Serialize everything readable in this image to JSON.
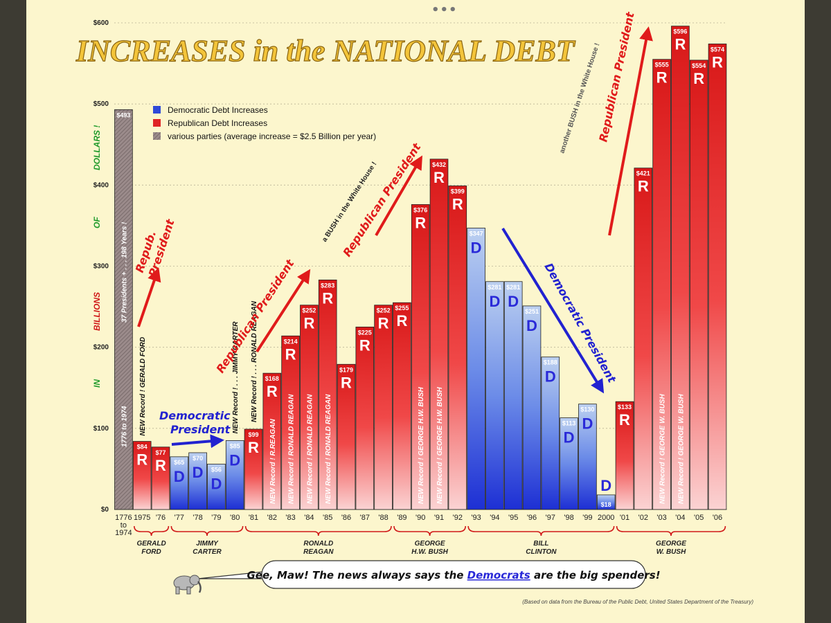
{
  "chart_data": {
    "type": "bar",
    "title": "INCREASES in the NATIONAL DEBT",
    "ylabel_words": [
      "IN",
      "BILLIONS",
      "OF",
      "DOLLARS !"
    ],
    "ylim": [
      0,
      600
    ],
    "yticks": [
      0,
      100,
      200,
      300,
      400,
      500,
      600
    ],
    "ytick_labels": [
      "$0",
      "$100",
      "$200",
      "$300",
      "$400",
      "$500",
      "$600"
    ],
    "categories": [
      "1776\nto\n1974",
      "1975",
      "'76",
      "'77",
      "'78",
      "'79",
      "'80",
      "'81",
      "'82",
      "'83",
      "'84",
      "'85",
      "'86",
      "'87",
      "'88",
      "'89",
      "'90",
      "'91",
      "'92",
      "'93",
      "'94",
      "'95",
      "'96",
      "'97",
      "'98",
      "'99",
      "2000",
      "'01",
      "'02",
      "'03",
      "'04",
      "'05",
      "'06"
    ],
    "values": [
      493,
      84,
      77,
      65,
      70,
      56,
      85,
      99,
      168,
      214,
      252,
      283,
      179,
      225,
      252,
      255,
      376,
      432,
      399,
      347,
      281,
      281,
      251,
      188,
      113,
      130,
      18,
      133,
      421,
      555,
      596,
      554,
      574
    ],
    "value_labels": [
      "$493",
      "$84",
      "$77",
      "$65",
      "$70",
      "$56",
      "$85",
      "$99",
      "$168",
      "$214",
      "$252",
      "$283",
      "$179",
      "$225",
      "$252",
      "$255",
      "$376",
      "$432",
      "$399",
      "$347",
      "$281",
      "$281",
      "$251",
      "$188",
      "$113",
      "$130",
      "$18",
      "$133",
      "$421",
      "$555",
      "$596",
      "$554",
      "$574"
    ],
    "party": [
      "V",
      "R",
      "R",
      "D",
      "D",
      "D",
      "D",
      "R",
      "R",
      "R",
      "R",
      "R",
      "R",
      "R",
      "R",
      "R",
      "R",
      "R",
      "R",
      "D",
      "D",
      "D",
      "D",
      "D",
      "D",
      "D",
      "D",
      "R",
      "R",
      "R",
      "R",
      "R",
      "R"
    ],
    "record_labels": {
      "1": "NEW Record ! GERALD FORD",
      "8": "NEW Record ! R.REAGAN",
      "9": "NEW Record ! RONALD REAGAN",
      "10": "NEW Record ! RONALD REAGAN",
      "11": "NEW Record ! RONALD REAGAN",
      "16": "NEW Record ! GEORGE H.W. BUSH",
      "17": "NEW Record ! GEORGE H.W. BUSH",
      "29": "NEW Record ! GEORGE W. BUSH",
      "30": "NEW Record ! GEORGE W. BUSH"
    },
    "first_bar_note": "1776 to 1974",
    "first_bar_note2": "37 Presidents + . . . 198 Years !",
    "carter_reagan_note1": "NEW Record ! . . . JIMMY CARTER",
    "carter_reagan_note2": "NEW Record ! . . . RONALD REAGAN",
    "legend": [
      {
        "label": "Democratic Debt Increases",
        "color": "#2f49d8"
      },
      {
        "label": "Republican Debt Increases",
        "color": "#e02424"
      },
      {
        "label": "various parties (average increase = $2.5 Billion per year)",
        "color": "#8f7d7d"
      }
    ],
    "presidents": [
      {
        "name1": "GERALD",
        "name2": "FORD",
        "from": 1,
        "to": 2
      },
      {
        "name1": "JIMMY",
        "name2": "CARTER",
        "from": 3,
        "to": 6
      },
      {
        "name1": "RONALD",
        "name2": "REAGAN",
        "from": 7,
        "to": 14
      },
      {
        "name1": "GEORGE",
        "name2": "H.W. BUSH",
        "from": 15,
        "to": 18
      },
      {
        "name1": "BILL",
        "name2": "CLINTON",
        "from": 19,
        "to": 26
      },
      {
        "name1": "GEORGE",
        "name2": "W. BUSH",
        "from": 27,
        "to": 32
      }
    ],
    "colors": {
      "democrat": "#2f49d8",
      "republican": "#e02424",
      "various": "#8f7d7d",
      "background": "#fcf6cd"
    }
  },
  "annotations": {
    "repub_president_1": "Repub. President",
    "democratic_president_1": "Democratic President",
    "republican_president_2": "Republican President",
    "republican_president_3": "Republican President",
    "bush_house_1": "a BUSH in the White House !",
    "democratic_president_2": "Democratic President",
    "bush_house_2": "another BUSH in the White House !",
    "republican_president_4": "Republican President"
  },
  "speech_bubble": {
    "prefix": "Gee, Maw! The news always says the ",
    "link": "Democrats",
    "suffix": " are the big spenders!"
  },
  "source": "(Based on data from the Bureau of the Public Debt, United States Department of the Treasury)"
}
